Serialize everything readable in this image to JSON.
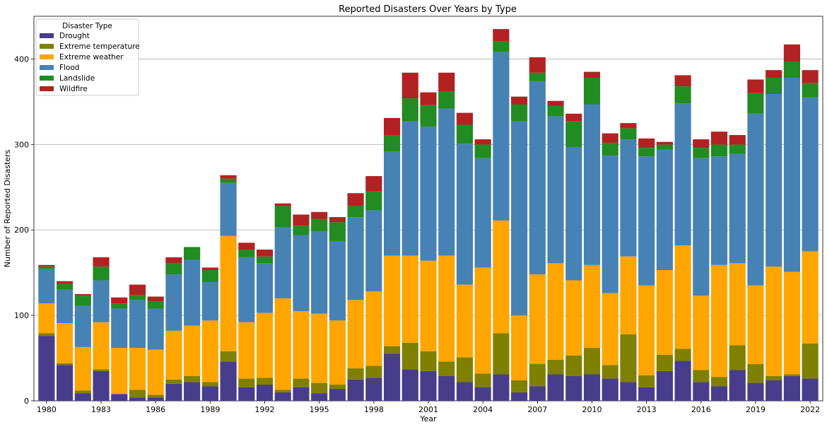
{
  "chart_data": {
    "type": "bar",
    "stacked": true,
    "title": "Reported Disasters Over Years by Type",
    "xlabel": "Year",
    "ylabel": "Number of Reported Disasters",
    "ylim": [
      0,
      450
    ],
    "yticks": [
      0,
      100,
      200,
      300,
      400
    ],
    "xticks": [
      "1980",
      "1983",
      "1986",
      "1989",
      "1992",
      "1995",
      "1998",
      "2001",
      "2004",
      "2007",
      "2010",
      "2013",
      "2016",
      "2019",
      "2022"
    ],
    "grid": "y",
    "legend_title": "Disaster Type",
    "legend_position": "top-left",
    "categories": [
      "1980",
      "1981",
      "1982",
      "1983",
      "1984",
      "1985",
      "1986",
      "1987",
      "1988",
      "1989",
      "1990",
      "1991",
      "1992",
      "1993",
      "1994",
      "1995",
      "1996",
      "1997",
      "1998",
      "1999",
      "2000",
      "2001",
      "2002",
      "2003",
      "2004",
      "2005",
      "2006",
      "2007",
      "2008",
      "2009",
      "2010",
      "2011",
      "2012",
      "2013",
      "2014",
      "2015",
      "2016",
      "2017",
      "2018",
      "2019",
      "2020",
      "2021",
      "2022"
    ],
    "series": [
      {
        "name": "Drought",
        "color": "#483d8b",
        "values": [
          76,
          42,
          9,
          35,
          8,
          4,
          4,
          20,
          22,
          17,
          46,
          16,
          19,
          10,
          16,
          9,
          14,
          25,
          27,
          55,
          37,
          35,
          29,
          22,
          16,
          31,
          10,
          17,
          31,
          29,
          31,
          26,
          22,
          16,
          35,
          47,
          22,
          17,
          36,
          21,
          24,
          29,
          26
        ]
      },
      {
        "name": "Extreme temperature",
        "color": "#808000",
        "values": [
          3,
          2,
          3,
          2,
          0,
          9,
          3,
          5,
          7,
          5,
          12,
          10,
          8,
          3,
          10,
          12,
          5,
          13,
          14,
          9,
          31,
          23,
          17,
          29,
          16,
          48,
          14,
          26,
          17,
          24,
          31,
          16,
          56,
          14,
          19,
          14,
          14,
          11,
          29,
          22,
          5,
          2,
          41
        ]
      },
      {
        "name": "Extreme weather",
        "color": "#ffa500",
        "values": [
          35,
          47,
          51,
          55,
          54,
          49,
          53,
          57,
          59,
          72,
          135,
          66,
          76,
          107,
          79,
          81,
          75,
          80,
          87,
          106,
          102,
          106,
          124,
          85,
          124,
          132,
          76,
          105,
          113,
          88,
          97,
          84,
          91,
          105,
          99,
          121,
          87,
          131,
          96,
          92,
          128,
          120,
          108
        ]
      },
      {
        "name": "Flood",
        "color": "#4682b4",
        "values": [
          40,
          39,
          48,
          49,
          46,
          56,
          48,
          66,
          77,
          45,
          62,
          76,
          58,
          83,
          89,
          96,
          93,
          97,
          95,
          122,
          157,
          157,
          172,
          165,
          128,
          197,
          227,
          226,
          172,
          156,
          188,
          161,
          137,
          151,
          141,
          166,
          161,
          127,
          128,
          201,
          202,
          227,
          180
        ]
      },
      {
        "name": "Landslide",
        "color": "#228b22",
        "values": [
          3,
          7,
          12,
          16,
          6,
          6,
          8,
          13,
          15,
          14,
          5,
          9,
          8,
          25,
          11,
          15,
          22,
          13,
          22,
          19,
          27,
          25,
          20,
          22,
          16,
          13,
          20,
          10,
          12,
          30,
          31,
          15,
          13,
          10,
          6,
          20,
          12,
          14,
          11,
          24,
          19,
          19,
          17
        ]
      },
      {
        "name": "Wildfire",
        "color": "#b22222",
        "values": [
          2,
          3,
          2,
          11,
          7,
          12,
          6,
          7,
          0,
          3,
          4,
          8,
          8,
          3,
          13,
          8,
          6,
          15,
          18,
          20,
          30,
          15,
          22,
          14,
          6,
          14,
          9,
          18,
          6,
          9,
          7,
          11,
          6,
          11,
          3,
          13,
          10,
          15,
          11,
          16,
          9,
          20,
          15
        ]
      }
    ]
  }
}
